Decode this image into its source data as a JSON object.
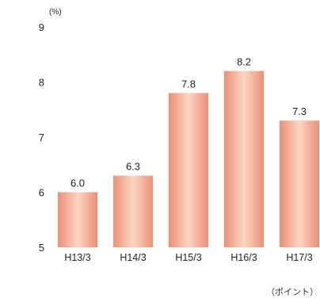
{
  "chart_data": {
    "type": "bar",
    "categories": [
      "H13/3",
      "H14/3",
      "H15/3",
      "H16/3",
      "H17/3"
    ],
    "values": [
      6.0,
      6.3,
      7.8,
      8.2,
      7.3
    ],
    "value_labels": [
      "6.0",
      "6.3",
      "7.8",
      "8.2",
      "7.3"
    ],
    "title": "",
    "xlabel": "",
    "ylabel": "",
    "y_unit": "(%)",
    "ylim": [
      5,
      9
    ],
    "y_ticks": [
      5,
      6,
      7,
      8,
      9
    ],
    "grid": false,
    "bar_color_center": "#fbd6c2",
    "bar_color_edge": "#ec8f76",
    "footnote": "（ポイント）"
  }
}
